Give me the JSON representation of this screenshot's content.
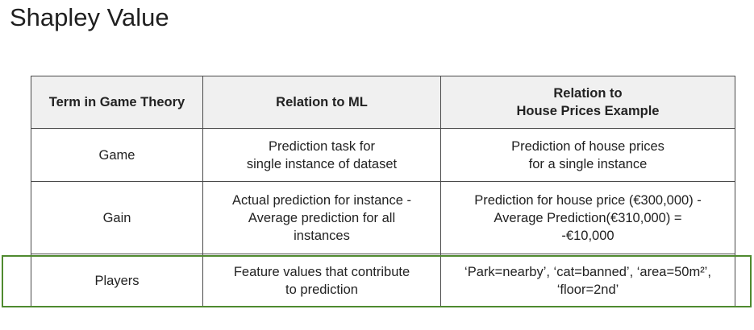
{
  "title": "Shapley Value",
  "table": {
    "headers": [
      "Term in Game Theory",
      [
        "Relation to ML"
      ],
      [
        "Relation to",
        "House Prices Example"
      ]
    ],
    "rows": [
      {
        "term": "Game",
        "ml": [
          "Prediction task for",
          "single instance of dataset"
        ],
        "example": [
          "Prediction of house prices",
          "for a single instance"
        ]
      },
      {
        "term": "Gain",
        "ml": [
          "Actual prediction for instance -",
          "Average prediction for all",
          "instances"
        ],
        "example": [
          "Prediction for house price (€300,000) -",
          "Average Prediction(€310,000) =",
          "-€10,000"
        ]
      },
      {
        "term": "Players",
        "ml": [
          "Feature values that contribute",
          "to prediction"
        ],
        "example": [
          "‘Park=nearby’, ‘cat=banned’, ‘area=50m²’,",
          "‘floor=2nd’"
        ]
      }
    ]
  },
  "highlighted_row": "Players",
  "colors": {
    "header_bg": "#f0f0f0",
    "border": "#4a4a4a",
    "highlight": "#4f8a2f"
  }
}
